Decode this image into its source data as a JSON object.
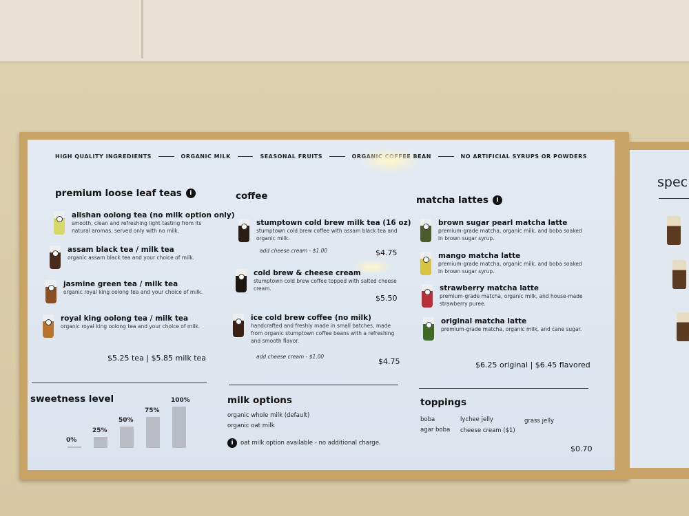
{
  "tagline": [
    "HIGH QUALITY INGREDIENTS",
    "ORGANIC MILK",
    "SEASONAL FRUITS",
    "ORGANIC COFFEE BEAN",
    "NO ARTIFICIAL SYRUPS OR POWDERS"
  ],
  "teas": {
    "title": "premium loose leaf teas",
    "info_icon": "info-icon",
    "items": [
      {
        "name": "alishan oolong tea (no milk option only)",
        "desc": "smooth, clean and refreshing light tasting from its natural aromas. served only with no milk.",
        "color": "#d9d66a"
      },
      {
        "name": "assam black tea / milk tea",
        "desc": "organic assam black tea and your choice of milk.",
        "color": "#4a2c1c"
      },
      {
        "name": "jasmine green tea / milk tea",
        "desc": "organic royal king oolong tea and your choice of milk.",
        "color": "#8a4f23"
      },
      {
        "name": "royal king oolong tea / milk tea",
        "desc": "organic royal king oolong tea and your choice of milk.",
        "color": "#b8742d"
      }
    ],
    "price": "$5.25 tea | $5.85 milk tea"
  },
  "coffee": {
    "title": "coffee",
    "items": [
      {
        "name": "stumptown cold brew milk tea (16 oz)",
        "desc": "stumptown cold brew coffee with assam black tea and organic milk.",
        "addon": "add cheese cream - $1.00",
        "price": "$4.75",
        "color": "#2b1c14"
      },
      {
        "name": "cold brew & cheese cream",
        "desc": "stumptown cold brew coffee topped with salted cheese cream.",
        "price": "$5.50",
        "color": "#1e1410"
      },
      {
        "name": "ice cold brew coffee (no milk)",
        "desc": "handcrafted and freshly made in small batches, made from organic stumptown coffee beans with a refreshing and smooth flavor.",
        "addon": "add cheese cream - $1.00",
        "price": "$4.75",
        "color": "#3a2015"
      }
    ]
  },
  "matcha": {
    "title": "matcha lattes",
    "items": [
      {
        "name": "brown sugar pearl matcha latte",
        "desc": "premium-grade matcha, organic milk, and boba soaked in brown sugar syrup.",
        "color": "#4f5a2a"
      },
      {
        "name": "mango matcha latte",
        "desc": "premium-grade matcha, organic milk, and boba soaked in brown sugar syrup.",
        "color": "#d8c340"
      },
      {
        "name": "strawberry matcha latte",
        "desc": "premium-grade matcha, organic milk, and house-made strawberry puree.",
        "color": "#b8303a"
      },
      {
        "name": "original matcha latte",
        "desc": "premium-grade matcha, organic milk, and cane sugar.",
        "color": "#3f6a25"
      }
    ],
    "price": "$6.25 original | $6.45 flavored"
  },
  "sweetness": {
    "title": "sweetness level",
    "levels": [
      {
        "label": "0%",
        "value": 0
      },
      {
        "label": "25%",
        "value": 25
      },
      {
        "label": "50%",
        "value": 50
      },
      {
        "label": "75%",
        "value": 75
      },
      {
        "label": "100%",
        "value": 100
      }
    ]
  },
  "milk": {
    "title": "milk options",
    "options": [
      "organic whole milk (default)",
      "organic oat milk"
    ],
    "note": "oat milk option available - no additional charge."
  },
  "toppings": {
    "title": "toppings",
    "items": [
      "boba",
      "lychee jelly",
      "grass jelly",
      "agar boba",
      "cheese cream ($1)"
    ],
    "price": "$0.70"
  },
  "next_board": {
    "title": "spec"
  }
}
